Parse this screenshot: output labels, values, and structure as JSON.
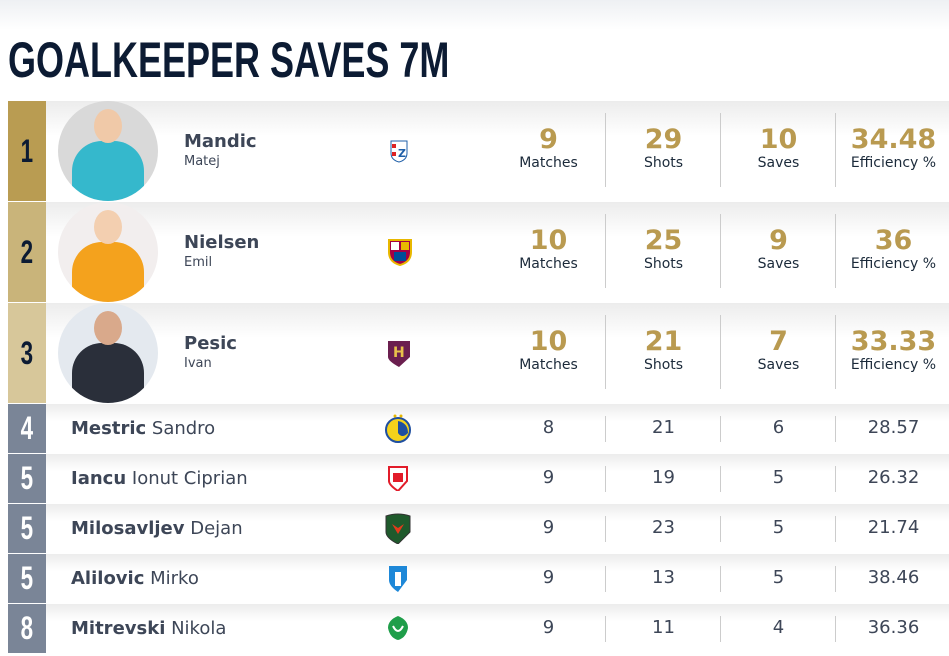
{
  "title": "GOALKEEPER SAVES 7M",
  "labels": {
    "matches": "Matches",
    "shots": "Shots",
    "saves": "Saves",
    "efficiency": "Efficiency %"
  },
  "colors": {
    "gold": "#b99a50",
    "rank1": "#b99c52",
    "rank2": "#c9b47a",
    "rank3": "#d7c79a",
    "rank_other": "#7a8597"
  },
  "top": [
    {
      "rank": "1",
      "last": "Mandic",
      "first": "Matej",
      "club_icon": "zagreb-crest-icon",
      "matches": "9",
      "shots": "29",
      "saves": "10",
      "efficiency": "34.48"
    },
    {
      "rank": "2",
      "last": "Nielsen",
      "first": "Emil",
      "club_icon": "barcelona-crest-icon",
      "matches": "10",
      "shots": "25",
      "saves": "9",
      "efficiency": "36"
    },
    {
      "rank": "3",
      "last": "Pesic",
      "first": "Ivan",
      "club_icon": "hbc-nantes-crest-icon",
      "matches": "10",
      "shots": "21",
      "saves": "7",
      "efficiency": "33.33"
    }
  ],
  "rest": [
    {
      "rank": "4",
      "last": "Mestric",
      "first": "Sandro",
      "club_icon": "eurofarm-pelister-crest-icon",
      "matches": "8",
      "shots": "21",
      "saves": "6",
      "efficiency": "28.57"
    },
    {
      "rank": "5",
      "last": "Iancu",
      "first": "Ionut Ciprian",
      "club_icon": "dinamo-bucuresti-crest-icon",
      "matches": "9",
      "shots": "19",
      "saves": "5",
      "efficiency": "26.32"
    },
    {
      "rank": "5",
      "last": "Milosavljev",
      "first": "Dejan",
      "club_icon": "fuchse-berlin-crest-icon",
      "matches": "9",
      "shots": "23",
      "saves": "5",
      "efficiency": "21.74"
    },
    {
      "rank": "5",
      "last": "Alilovic",
      "first": "Mirko",
      "club_icon": "wisla-plock-crest-icon",
      "matches": "9",
      "shots": "13",
      "saves": "5",
      "efficiency": "38.46"
    },
    {
      "rank": "8",
      "last": "Mitrevski",
      "first": "Nikola",
      "club_icon": "rk-vardar-crest-icon",
      "matches": "9",
      "shots": "11",
      "saves": "4",
      "efficiency": "36.36"
    }
  ]
}
